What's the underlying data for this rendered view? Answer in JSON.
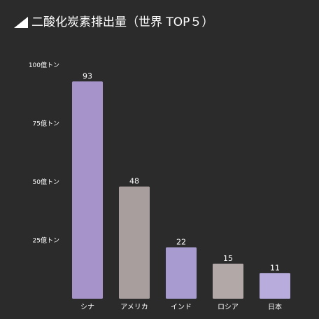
{
  "title": "二酸化炭素排出量（世界 TOP５）",
  "title_icon": "triangle-corner-icon",
  "colors": {
    "background": "#2b2b2b",
    "text": "#ffffff",
    "bars": [
      "#a593c9",
      "#a89e9e",
      "#a89bd0",
      "#b3a8a8",
      "#b7acdc"
    ]
  },
  "chart_data": {
    "type": "bar",
    "title": "二酸化炭素排出量（世界 TOP５）",
    "categories": [
      "シナ",
      "アメリカ",
      "インド",
      "ロシア",
      "日本"
    ],
    "values": [
      93,
      48,
      22,
      15,
      11
    ],
    "value_labels": [
      "93",
      "48",
      "22",
      "15",
      "11"
    ],
    "yticks": [
      25,
      50,
      75,
      100
    ],
    "ytick_labels": [
      "25億トン",
      "50億トン",
      "75億トン",
      "100億トン"
    ],
    "ylim": [
      0,
      100
    ],
    "xlabel": "",
    "ylabel": "",
    "grid": false,
    "legend": "none"
  }
}
